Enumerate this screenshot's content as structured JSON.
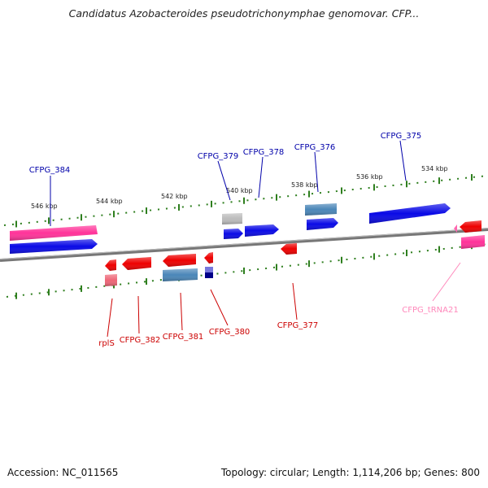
{
  "title": "Candidatus Azobacteroides pseudotrichonymphae genomovar. CFP...",
  "footer": {
    "accession": "Accession: NC_011565",
    "summary": "Topology: circular; Length: 1,114,206 bp; Genes: 800"
  },
  "colors": {
    "cds": "#0a0ae6",
    "cds_reverse": "#ee0000",
    "rrna": "#ff3399",
    "trna": "#ff66b0",
    "misc": "#4a86b8",
    "pseudo": "#bbbbbb",
    "tick": "#2f7f1f",
    "backbone": "#777777"
  },
  "kbp_labels": [
    "546 kbp",
    "544 kbp",
    "542 kbp",
    "540 kbp",
    "538 kbp",
    "536 kbp",
    "534 kbp"
  ],
  "genes_top": [
    "CFPG_384",
    "CFPG_379",
    "CFPG_378",
    "CFPG_376",
    "CFPG_375"
  ],
  "genes_bottom": [
    "rplS",
    "CFPG_382",
    "CFPG_381",
    "CFPG_380",
    "CFPG_377",
    "CFPG_tRNA21"
  ]
}
